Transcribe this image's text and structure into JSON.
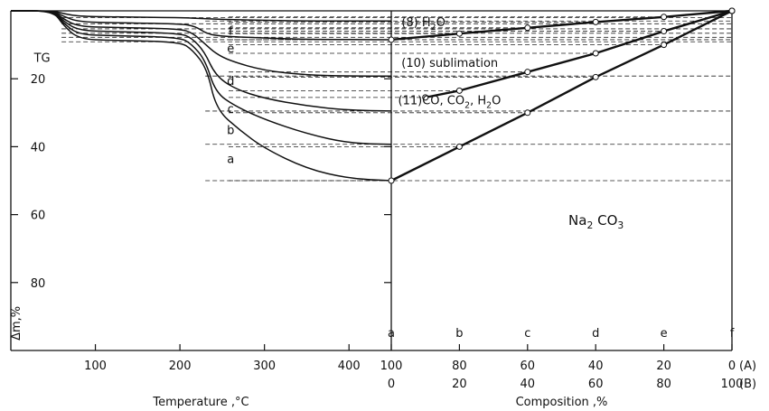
{
  "chart_data": [
    {
      "type": "line",
      "panel": "left",
      "panel_label": "TG",
      "xlabel": "Temperature ,°C",
      "ylabel": "Δm,%",
      "xlim": [
        0,
        450
      ],
      "ylim": [
        0,
        100
      ],
      "y_inverted": true,
      "x_ticks": [
        100,
        200,
        300,
        400
      ],
      "x_tick_labels": [
        "100",
        "200",
        "300",
        "400"
      ],
      "y_ticks": [
        20,
        40,
        60,
        80
      ],
      "y_tick_labels": [
        "20",
        "40",
        "60",
        "80"
      ],
      "series": [
        {
          "name": "f",
          "points": [
            [
              0,
              0
            ],
            [
              50,
              0
            ],
            [
              62,
              0.8
            ],
            [
              80,
              1.6
            ],
            [
              120,
              1.8
            ],
            [
              200,
              2.0
            ],
            [
              230,
              2.3
            ],
            [
              260,
              2.6
            ],
            [
              300,
              2.8
            ],
            [
              350,
              3.0
            ],
            [
              450,
              3.0
            ]
          ]
        },
        {
          "name": "e",
          "points": [
            [
              0,
              0
            ],
            [
              50,
              0
            ],
            [
              62,
              1.6
            ],
            [
              80,
              3.2
            ],
            [
              120,
              3.5
            ],
            [
              200,
              3.8
            ],
            [
              218,
              4.5
            ],
            [
              232,
              6.8
            ],
            [
              250,
              7.5
            ],
            [
              300,
              8.0
            ],
            [
              350,
              8.4
            ],
            [
              450,
              8.5
            ]
          ]
        },
        {
          "name": "d",
          "points": [
            [
              0,
              0
            ],
            [
              50,
              0
            ],
            [
              62,
              2.4
            ],
            [
              80,
              4.6
            ],
            [
              120,
              4.9
            ],
            [
              200,
              5.3
            ],
            [
              215,
              6.5
            ],
            [
              230,
              9.8
            ],
            [
              242,
              12.5
            ],
            [
              260,
              14.8
            ],
            [
              300,
              17.6
            ],
            [
              350,
              18.9
            ],
            [
              400,
              19.2
            ],
            [
              450,
              19.2
            ]
          ]
        },
        {
          "name": "c",
          "points": [
            [
              0,
              0
            ],
            [
              50,
              0
            ],
            [
              62,
              3.0
            ],
            [
              80,
              5.8
            ],
            [
              120,
              6.1
            ],
            [
              200,
              6.6
            ],
            [
              214,
              8.0
            ],
            [
              229,
              12.0
            ],
            [
              242,
              19.0
            ],
            [
              265,
              23.0
            ],
            [
              300,
              25.8
            ],
            [
              350,
              28.0
            ],
            [
              400,
              29.3
            ],
            [
              450,
              29.5
            ]
          ]
        },
        {
          "name": "b",
          "points": [
            [
              0,
              0
            ],
            [
              50,
              0
            ],
            [
              62,
              3.6
            ],
            [
              80,
              7.0
            ],
            [
              120,
              7.3
            ],
            [
              200,
              7.8
            ],
            [
              214,
              9.8
            ],
            [
              230,
              14.5
            ],
            [
              242,
              24.0
            ],
            [
              265,
              28.0
            ],
            [
              300,
              32.0
            ],
            [
              350,
              36.2
            ],
            [
              400,
              39.0
            ],
            [
              450,
              39.3
            ]
          ]
        },
        {
          "name": "a",
          "points": [
            [
              0,
              0
            ],
            [
              50,
              0
            ],
            [
              62,
              4.2
            ],
            [
              80,
              8.3
            ],
            [
              120,
              8.7
            ],
            [
              200,
              9.1
            ],
            [
              215,
              11.5
            ],
            [
              232,
              17.0
            ],
            [
              243,
              29.0
            ],
            [
              270,
              35.0
            ],
            [
              300,
              40.5
            ],
            [
              350,
              46.5
            ],
            [
              400,
              49.4
            ],
            [
              450,
              50.0
            ]
          ]
        }
      ]
    },
    {
      "type": "line",
      "panel": "right",
      "xlabel": "Composition ,%",
      "xlim": [
        0,
        100
      ],
      "x_ticks": [
        0,
        20,
        40,
        60,
        80,
        100
      ],
      "x_tick_labels_A": [
        "100",
        "80",
        "60",
        "40",
        "20",
        "0"
      ],
      "x_tick_labels_B": [
        "0",
        "20",
        "40",
        "60",
        "80",
        "100"
      ],
      "axis_suffix_A": "(A)",
      "axis_suffix_B": "(B)",
      "sample_letters": [
        "a",
        "b",
        "c",
        "d",
        "e",
        "f"
      ],
      "region_label": {
        "main": "Na",
        "sub1": "2",
        "mid": " CO",
        "sub2": "3"
      },
      "series": [
        {
          "label_parts": {
            "num": "(8)",
            "text": "H",
            "sub": "2",
            "tail": "O"
          },
          "points": [
            [
              0,
              8.5
            ],
            [
              20,
              6.7
            ],
            [
              40,
              5.0
            ],
            [
              60,
              3.3
            ],
            [
              80,
              1.8
            ],
            [
              100,
              0
            ]
          ]
        },
        {
          "label_parts": {
            "num": "(10)",
            "text": "sublimation"
          },
          "points": [
            [
              10,
              25.5
            ],
            [
              20,
              23.5
            ],
            [
              40,
              18.0
            ],
            [
              60,
              12.5
            ],
            [
              80,
              6.0
            ],
            [
              100,
              0
            ]
          ]
        },
        {
          "label_parts": {
            "num": "(11)",
            "text": "CO, CO",
            "sub": "2",
            "tail": ", H",
            "sub2": "2",
            "tail2": "O"
          },
          "points": [
            [
              0,
              50.0
            ],
            [
              20,
              40.0
            ],
            [
              40,
              30.0
            ],
            [
              60,
              19.5
            ],
            [
              80,
              10.0
            ],
            [
              100,
              0
            ]
          ]
        }
      ]
    }
  ]
}
